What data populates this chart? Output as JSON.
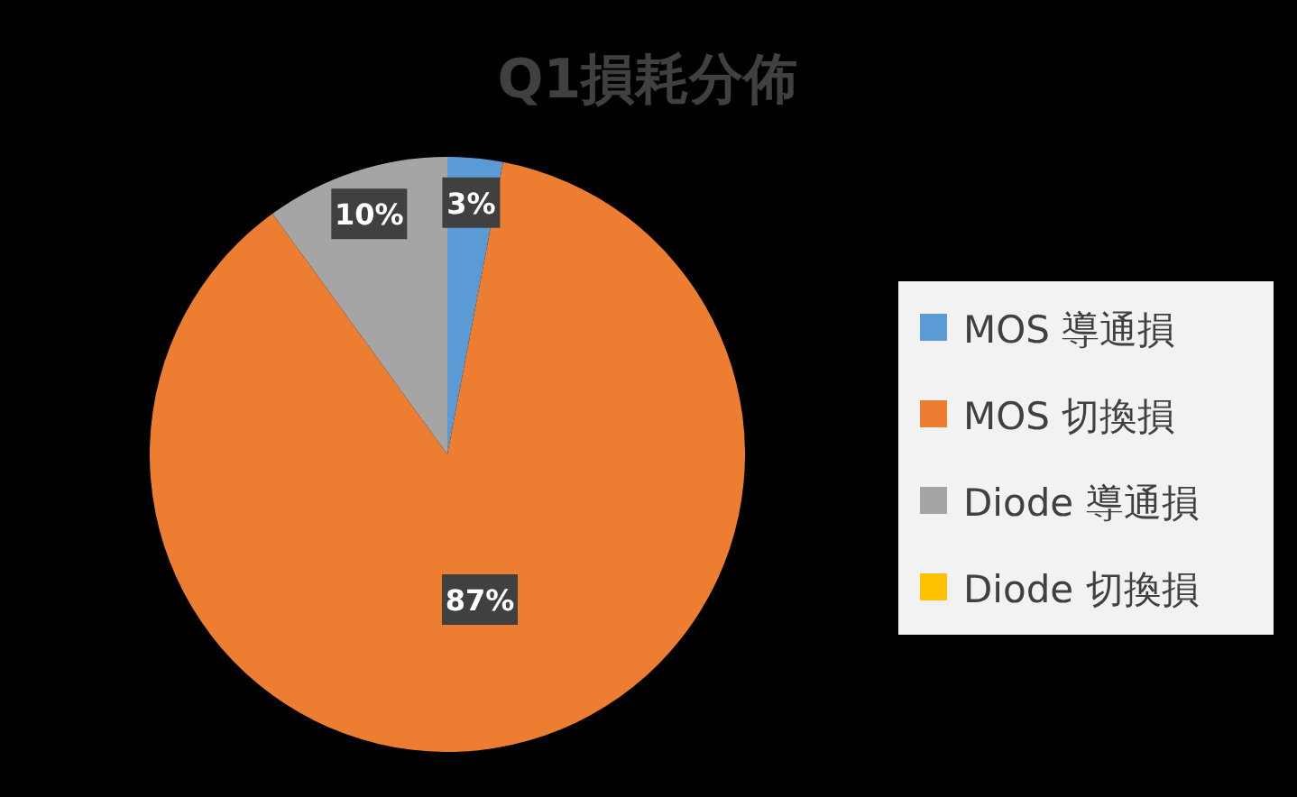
{
  "chart_data": {
    "type": "pie",
    "title": "Q1損耗分佈",
    "categories": [
      "MOS 導通損",
      "MOS 切換損",
      "Diode 導通損",
      "Diode 切換損"
    ],
    "values": [
      3,
      87,
      10,
      0
    ],
    "colors": [
      "#5b9bd5",
      "#ed7d31",
      "#a5a5a5",
      "#ffc000"
    ],
    "value_labels": [
      "3%",
      "87%",
      "10%",
      null
    ],
    "legend": "right"
  }
}
